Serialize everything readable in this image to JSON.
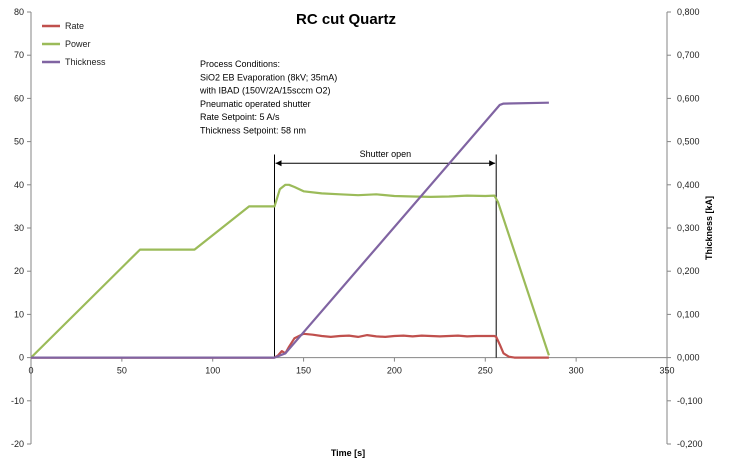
{
  "chart_data": {
    "type": "line",
    "title": "RC cut Quartz",
    "xlabel": "Time [s]",
    "ylabel": "",
    "y2label": "Thickness [kA]",
    "xlim": [
      0,
      350
    ],
    "ylim": [
      -20,
      80
    ],
    "y2lim": [
      -0.2,
      0.8
    ],
    "xticks": [
      "0",
      "50",
      "100",
      "150",
      "200",
      "250",
      "300",
      "350"
    ],
    "xtick_values": [
      0,
      50,
      100,
      150,
      200,
      250,
      300,
      350
    ],
    "yticks": [
      "-20",
      "-10",
      "0",
      "10",
      "20",
      "30",
      "40",
      "50",
      "60",
      "70",
      "80"
    ],
    "ytick_values": [
      -20,
      -10,
      0,
      10,
      20,
      30,
      40,
      50,
      60,
      70,
      80
    ],
    "y2ticks": [
      "-0,200",
      "-0,100",
      "0,000",
      "0,100",
      "0,200",
      "0,300",
      "0,400",
      "0,500",
      "0,600",
      "0,700",
      "0,800"
    ],
    "y2tick_values": [
      -0.2,
      -0.1,
      0.0,
      0.1,
      0.2,
      0.3,
      0.4,
      0.5,
      0.6,
      0.7,
      0.8
    ],
    "grid": false,
    "legend_position": "top-left",
    "series": [
      {
        "name": "Rate",
        "axis": "left",
        "color": "#c0504d",
        "x": [
          0,
          134,
          136,
          138,
          140,
          142,
          145,
          150,
          155,
          160,
          165,
          170,
          175,
          180,
          185,
          190,
          195,
          200,
          205,
          210,
          215,
          220,
          225,
          230,
          235,
          240,
          245,
          250,
          255,
          256,
          258,
          260,
          263,
          266,
          270,
          285
        ],
        "y": [
          0,
          0,
          0.5,
          1.5,
          1.0,
          2.5,
          4.5,
          5.5,
          5.3,
          5.0,
          4.8,
          5.0,
          5.1,
          4.8,
          5.2,
          4.9,
          4.8,
          5.0,
          5.1,
          4.9,
          5.1,
          5.0,
          4.9,
          5.0,
          5.1,
          4.9,
          5.0,
          5.0,
          5.0,
          4.8,
          3.0,
          1.0,
          0.2,
          0,
          0,
          0
        ]
      },
      {
        "name": "Power",
        "axis": "left",
        "color": "#9bbb59",
        "x": [
          0,
          60,
          90,
          120,
          134,
          137,
          140,
          142,
          145,
          150,
          160,
          170,
          180,
          190,
          200,
          210,
          220,
          230,
          240,
          250,
          255,
          257,
          285
        ],
        "y": [
          0,
          25,
          25,
          35,
          35,
          39,
          40,
          40,
          39.5,
          38.5,
          38.0,
          37.8,
          37.6,
          37.8,
          37.4,
          37.3,
          37.2,
          37.3,
          37.5,
          37.4,
          37.5,
          36,
          0.5
        ]
      },
      {
        "name": "Thickness",
        "axis": "right",
        "color": "#8064a2",
        "x": [
          0,
          134,
          140,
          258,
          260,
          285
        ],
        "y": [
          0.0,
          0.0,
          0.01,
          0.585,
          0.588,
          0.59
        ]
      }
    ],
    "annotations": [
      {
        "text": "Process Conditions:\nSiO2 EB Evaporation (8kV; 35mA)\nwith IBAD (150V/2A/15sccm O2)\nPneumatic operated shutter\nRate Setpoint: 5 A/s\nThickness Setpoint: 58 nm"
      },
      {
        "text": "Shutter open",
        "x_start": 134,
        "x_end": 256,
        "y": 45
      }
    ]
  }
}
